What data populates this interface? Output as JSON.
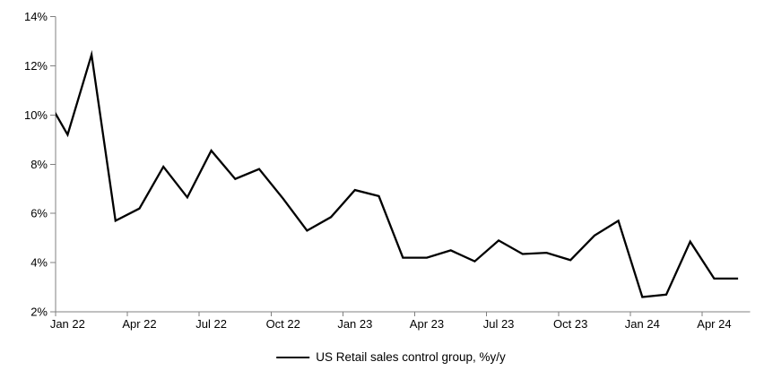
{
  "chart_data": {
    "type": "line",
    "title": "",
    "legend": "US Retail sales control group, %y/y",
    "legend_position": "bottom-center",
    "grid": false,
    "series_color": "#000000",
    "axis_color": "#808080",
    "text_color": "#000000",
    "background": "#ffffff",
    "ylim": [
      2,
      14
    ],
    "yticks": [
      2,
      4,
      6,
      8,
      10,
      12,
      14
    ],
    "ytick_labels": [
      "2%",
      "4%",
      "6%",
      "8%",
      "10%",
      "12%",
      "14%"
    ],
    "xtick_labels": [
      "Jan 22",
      "Apr 22",
      "Jul 22",
      "Oct 22",
      "Jan 23",
      "Apr 23",
      "Jul 23",
      "Oct 23",
      "Jan 24",
      "Apr 24"
    ],
    "xtick_label_every": 3,
    "first_point_clipped_at_left_edge": true,
    "categories": [
      "Dec 21",
      "Jan 22",
      "Feb 22",
      "Mar 22",
      "Apr 22",
      "May 22",
      "Jun 22",
      "Jul 22",
      "Aug 22",
      "Sep 22",
      "Oct 22",
      "Nov 22",
      "Dec 22",
      "Jan 23",
      "Feb 23",
      "Mar 23",
      "Apr 23",
      "May 23",
      "Jun 23",
      "Jul 23",
      "Aug 23",
      "Sep 23",
      "Oct 23",
      "Nov 23",
      "Dec 23",
      "Jan 24",
      "Feb 24",
      "Mar 24",
      "Apr 24",
      "May 24"
    ],
    "values": [
      10.9,
      9.2,
      12.45,
      5.7,
      6.2,
      7.9,
      6.65,
      8.55,
      7.4,
      7.8,
      6.6,
      5.3,
      5.85,
      6.95,
      6.7,
      4.2,
      4.2,
      4.5,
      4.05,
      4.9,
      4.35,
      4.4,
      4.1,
      5.1,
      5.7,
      2.6,
      2.7,
      4.85,
      3.35,
      3.35
    ]
  }
}
